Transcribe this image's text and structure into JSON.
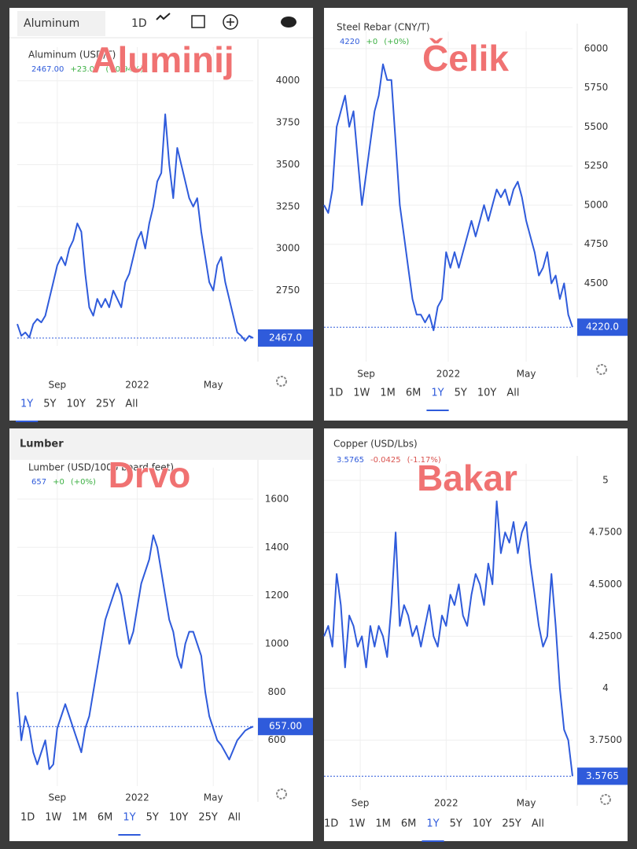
{
  "chart_data": [
    {
      "type": "line",
      "overlay": "Aluminij",
      "toolbar": {
        "symbol": "Aluminum",
        "interval": "1D"
      },
      "title": "Aluminum (USD/T)",
      "price": "2467.00",
      "change": "+23.00",
      "change_pct": "(+0.94%)",
      "change_color": "#3cb043",
      "color": "#2f5bdb",
      "values": [
        2550,
        2480,
        2500,
        2470,
        2550,
        2580,
        2560,
        2600,
        2700,
        2800,
        2900,
        2950,
        2900,
        3000,
        3050,
        3150,
        3100,
        2850,
        2650,
        2600,
        2700,
        2650,
        2700,
        2650,
        2750,
        2700,
        2650,
        2800,
        2850,
        2950,
        3050,
        3100,
        3000,
        3150,
        3250,
        3400,
        3450,
        3800,
        3500,
        3300,
        3600,
        3500,
        3400,
        3300,
        3250,
        3300,
        3100,
        2950,
        2800,
        2750,
        2900,
        2950,
        2800,
        2700,
        2600,
        2500,
        2480,
        2450,
        2480,
        2467
      ],
      "value_labels": [
        null,
        null,
        null,
        null,
        null,
        null,
        null,
        null,
        null,
        null,
        null,
        null,
        null,
        null,
        null,
        null,
        null,
        null,
        null,
        null,
        null,
        null,
        null,
        null,
        null,
        null,
        null,
        null,
        null,
        null,
        null,
        null,
        null,
        null,
        null,
        null,
        null,
        null,
        null,
        null,
        null,
        null,
        null,
        null,
        null,
        null,
        null,
        null,
        null,
        null,
        null,
        null,
        null,
        null,
        null,
        null,
        null,
        null,
        null,
        "2467.0"
      ],
      "xlim": [
        0,
        59
      ],
      "xticks": [
        {
          "value": 10,
          "label": "Sep"
        },
        {
          "value": 30,
          "label": "2022"
        },
        {
          "value": 49,
          "label": "May"
        }
      ],
      "ylim": [
        2420,
        4200
      ],
      "yticks": [
        2750,
        3000,
        3250,
        3500,
        3750,
        4000
      ],
      "grid": true,
      "ranges": [
        "1Y",
        "5Y",
        "10Y",
        "25Y",
        "All"
      ],
      "active_range": "1Y"
    },
    {
      "type": "line",
      "overlay": "Čelik",
      "title": "Steel Rebar (CNY/T)",
      "price": "4220",
      "change": "+0",
      "change_pct": "(+0%)",
      "change_color": "#3cb043",
      "color": "#2f5bdb",
      "values": [
        5000,
        4950,
        5100,
        5500,
        5600,
        5700,
        5500,
        5600,
        5300,
        5000,
        5200,
        5400,
        5600,
        5700,
        5900,
        5800,
        5800,
        5400,
        5000,
        4800,
        4600,
        4400,
        4300,
        4300,
        4250,
        4300,
        4200,
        4350,
        4400,
        4700,
        4600,
        4700,
        4600,
        4700,
        4800,
        4900,
        4800,
        4900,
        5000,
        4900,
        5000,
        5100,
        5050,
        5100,
        5000,
        5100,
        5150,
        5050,
        4900,
        4800,
        4700,
        4550,
        4600,
        4700,
        4500,
        4550,
        4400,
        4500,
        4300,
        4220
      ],
      "value_labels": [
        null,
        null,
        null,
        null,
        null,
        null,
        null,
        null,
        null,
        null,
        null,
        null,
        null,
        null,
        null,
        null,
        null,
        null,
        null,
        null,
        null,
        null,
        null,
        null,
        null,
        null,
        null,
        null,
        null,
        null,
        null,
        null,
        null,
        null,
        null,
        null,
        null,
        null,
        null,
        null,
        null,
        null,
        null,
        null,
        null,
        null,
        null,
        null,
        null,
        null,
        null,
        null,
        null,
        null,
        null,
        null,
        null,
        null,
        null,
        "4220.0"
      ],
      "xlim": [
        0,
        59
      ],
      "xticks": [
        {
          "value": 10,
          "label": "Sep"
        },
        {
          "value": 29.5,
          "label": "2022"
        },
        {
          "value": 48,
          "label": "May"
        }
      ],
      "ylim": [
        4000,
        6110
      ],
      "yticks": [
        4500,
        4750,
        5000,
        5250,
        5500,
        5750,
        6000
      ],
      "grid": true,
      "ranges": [
        "1D",
        "1W",
        "1M",
        "6M",
        "1Y",
        "5Y",
        "10Y",
        "All"
      ],
      "active_range": "1Y"
    },
    {
      "type": "line",
      "overlay": "Drvo",
      "section_title": "Lumber",
      "title": "Lumber (USD/1000 board feet)",
      "price": "657",
      "change": "+0",
      "change_pct": "(+0%)",
      "change_color": "#3cb043",
      "color": "#2f5bdb",
      "values": [
        800,
        600,
        700,
        650,
        550,
        500,
        550,
        600,
        480,
        500,
        650,
        700,
        750,
        700,
        650,
        600,
        550,
        650,
        700,
        800,
        900,
        1000,
        1100,
        1150,
        1200,
        1250,
        1200,
        1100,
        1000,
        1050,
        1150,
        1250,
        1300,
        1350,
        1450,
        1400,
        1300,
        1200,
        1100,
        1050,
        950,
        900,
        1000,
        1050,
        1050,
        1000,
        950,
        800,
        700,
        650,
        600,
        580,
        550,
        520,
        560,
        600,
        620,
        640,
        650,
        657
      ],
      "value_labels": [
        null,
        null,
        null,
        null,
        null,
        null,
        null,
        null,
        null,
        null,
        null,
        null,
        null,
        null,
        null,
        null,
        null,
        null,
        null,
        null,
        null,
        null,
        null,
        null,
        null,
        null,
        null,
        null,
        null,
        null,
        null,
        null,
        null,
        null,
        null,
        null,
        null,
        null,
        null,
        null,
        null,
        null,
        null,
        null,
        null,
        null,
        null,
        null,
        null,
        null,
        null,
        null,
        null,
        null,
        null,
        null,
        null,
        null,
        null,
        "657.00"
      ],
      "xlim": [
        0,
        59
      ],
      "xticks": [
        {
          "value": 10,
          "label": "Sep"
        },
        {
          "value": 30,
          "label": "2022"
        },
        {
          "value": 49,
          "label": "May"
        }
      ],
      "ylim": [
        410,
        1730
      ],
      "yticks": [
        600,
        800,
        1000,
        1200,
        1400,
        1600
      ],
      "grid": true,
      "ranges": [
        "1D",
        "1W",
        "1M",
        "6M",
        "1Y",
        "5Y",
        "10Y",
        "25Y",
        "All"
      ],
      "active_range": "1Y"
    },
    {
      "type": "line",
      "overlay": "Bakar",
      "title": "Copper (USD/Lbs)",
      "price": "3.5765",
      "change": "-0.0425",
      "change_pct": "(-1.17%)",
      "change_color": "#d9534f",
      "color": "#2f5bdb",
      "values": [
        4.25,
        4.3,
        4.2,
        4.55,
        4.4,
        4.1,
        4.35,
        4.3,
        4.2,
        4.25,
        4.1,
        4.3,
        4.2,
        4.3,
        4.25,
        4.15,
        4.4,
        4.75,
        4.3,
        4.4,
        4.35,
        4.25,
        4.3,
        4.2,
        4.3,
        4.4,
        4.25,
        4.2,
        4.35,
        4.3,
        4.45,
        4.4,
        4.5,
        4.35,
        4.3,
        4.45,
        4.55,
        4.5,
        4.4,
        4.6,
        4.5,
        4.9,
        4.65,
        4.75,
        4.7,
        4.8,
        4.65,
        4.75,
        4.8,
        4.6,
        4.45,
        4.3,
        4.2,
        4.25,
        4.55,
        4.3,
        4.0,
        3.8,
        3.75,
        3.5765
      ],
      "xlim": [
        0,
        59
      ],
      "xticks": [
        {
          "value": 8.6,
          "label": "Sep"
        },
        {
          "value": 29,
          "label": "2022"
        },
        {
          "value": 48,
          "label": "May"
        }
      ],
      "ylim": [
        3.51,
        5.08
      ],
      "yticks": [
        {
          "value": 3.75,
          "label": "3.7500"
        },
        4,
        {
          "value": 4.25,
          "label": "4.2500"
        },
        {
          "value": 4.5,
          "label": "4.5000"
        },
        {
          "value": 4.75,
          "label": "4.7500"
        },
        5
      ],
      "grid": true,
      "ranges": [
        "1D",
        "1W",
        "1M",
        "6M",
        "1Y",
        "5Y",
        "10Y",
        "25Y",
        "All"
      ],
      "active_range": "1Y"
    }
  ]
}
